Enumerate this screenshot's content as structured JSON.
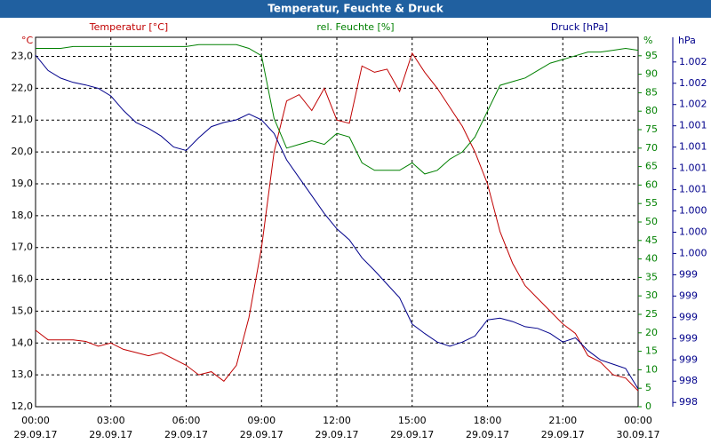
{
  "chart_data": {
    "type": "line",
    "title": "Temperatur, Feuchte & Druck",
    "x": [
      0,
      0.5,
      1,
      1.5,
      2,
      2.5,
      3,
      3.5,
      4,
      4.5,
      5,
      5.5,
      6,
      6.5,
      7,
      7.5,
      8,
      8.5,
      9,
      9.5,
      10,
      10.5,
      11,
      11.5,
      12,
      12.5,
      13,
      13.5,
      14,
      14.5,
      15,
      15.5,
      16,
      16.5,
      17,
      17.5,
      18,
      18.5,
      19,
      19.5,
      20,
      20.5,
      21,
      21.5,
      22,
      22.5,
      23,
      23.5,
      24
    ],
    "xlim": [
      0,
      24
    ],
    "xticks": [
      {
        "value": 0,
        "label": "00:00"
      },
      {
        "value": 3,
        "label": "03:00"
      },
      {
        "value": 6,
        "label": "06:00"
      },
      {
        "value": 9,
        "label": "09:00"
      },
      {
        "value": 12,
        "label": "12:00"
      },
      {
        "value": 15,
        "label": "15:00"
      },
      {
        "value": 18,
        "label": "18:00"
      },
      {
        "value": 21,
        "label": "21:00"
      },
      {
        "value": 24,
        "label": "00:00"
      }
    ],
    "xtick_dates": [
      "29.09.17",
      "29.09.17",
      "29.09.17",
      "29.09.17",
      "29.09.17",
      "29.09.17",
      "29.09.17",
      "29.09.17",
      "30.09.17"
    ],
    "ylabel": "°C",
    "ylim": [
      12,
      23.6
    ],
    "yticks": [
      {
        "value": 12,
        "label": "12,0"
      },
      {
        "value": 13,
        "label": "13,0"
      },
      {
        "value": 14,
        "label": "14,0"
      },
      {
        "value": 15,
        "label": "15,0"
      },
      {
        "value": 16,
        "label": "16,0"
      },
      {
        "value": 17,
        "label": "17,0"
      },
      {
        "value": 18,
        "label": "18,0"
      },
      {
        "value": 19,
        "label": "19,0"
      },
      {
        "value": 20,
        "label": "20,0"
      },
      {
        "value": 21,
        "label": "21,0"
      },
      {
        "value": 22,
        "label": "22,0"
      },
      {
        "value": 23,
        "label": "23,0"
      }
    ],
    "y2label": "%",
    "y2lim": [
      0,
      100
    ],
    "y2ticks": [
      0,
      5,
      10,
      15,
      20,
      25,
      30,
      35,
      40,
      45,
      50,
      55,
      60,
      65,
      70,
      75,
      80,
      85,
      90,
      95
    ],
    "y3label": "hPa",
    "y3lim": [
      997.95,
      1002.29
    ],
    "y3ticks": [
      {
        "value": 998.0,
        "label": "998"
      },
      {
        "value": 998.25,
        "label": "998"
      },
      {
        "value": 998.5,
        "label": "999"
      },
      {
        "value": 998.75,
        "label": "999"
      },
      {
        "value": 999.0,
        "label": "999"
      },
      {
        "value": 999.25,
        "label": "999"
      },
      {
        "value": 999.5,
        "label": "999"
      },
      {
        "value": 999.75,
        "label": "1.000"
      },
      {
        "value": 1000.0,
        "label": "1.000"
      },
      {
        "value": 1000.25,
        "label": "1.000"
      },
      {
        "value": 1000.5,
        "label": "1.001"
      },
      {
        "value": 1000.75,
        "label": "1.001"
      },
      {
        "value": 1001.0,
        "label": "1.001"
      },
      {
        "value": 1001.25,
        "label": "1.001"
      },
      {
        "value": 1001.5,
        "label": "1.002"
      },
      {
        "value": 1001.75,
        "label": "1.002"
      },
      {
        "value": 1002.0,
        "label": "1.002"
      }
    ],
    "grid": true,
    "series": [
      {
        "name": "Temperatur [°C]",
        "color": "#c00000",
        "axis": "y",
        "values": [
          14.4,
          14.1,
          14.1,
          14.1,
          14.05,
          13.9,
          14.0,
          13.8,
          13.7,
          13.6,
          13.7,
          13.5,
          13.3,
          13.0,
          13.1,
          12.8,
          13.3,
          14.8,
          17.0,
          20.0,
          21.6,
          21.8,
          21.3,
          22.0,
          21.0,
          20.9,
          22.7,
          22.5,
          22.6,
          21.9,
          23.1,
          22.5,
          22.0,
          21.4,
          20.8,
          20.0,
          19.0,
          17.5,
          16.5,
          15.8,
          15.4,
          15.0,
          14.6,
          14.3,
          13.6,
          13.4,
          13.0,
          12.9,
          12.5
        ]
      },
      {
        "name": "rel. Feuchte [%]",
        "color": "#008000",
        "axis": "y2",
        "values": [
          97,
          97,
          97,
          97.5,
          97.5,
          97.5,
          97.5,
          97.5,
          97.5,
          97.5,
          97.5,
          97.5,
          97.5,
          98,
          98,
          98,
          98,
          97,
          95,
          78,
          70,
          71,
          72,
          71,
          74,
          73,
          66,
          64,
          64,
          64,
          66,
          63,
          64,
          67,
          69,
          73,
          80,
          87,
          88,
          89,
          91,
          93,
          94,
          95,
          96,
          96,
          96.5,
          97,
          96.5
        ]
      },
      {
        "name": "Druck [hPa]",
        "color": "#00008b",
        "axis": "y3",
        "values": [
          1002.08,
          1001.9,
          1001.81,
          1001.76,
          1001.73,
          1001.69,
          1001.6,
          1001.43,
          1001.29,
          1001.22,
          1001.13,
          1001.0,
          1000.96,
          1001.11,
          1001.24,
          1001.29,
          1001.32,
          1001.39,
          1001.32,
          1001.16,
          1000.85,
          1000.64,
          1000.43,
          1000.22,
          1000.04,
          999.91,
          999.7,
          999.55,
          999.39,
          999.23,
          998.92,
          998.81,
          998.71,
          998.66,
          998.71,
          998.78,
          998.97,
          998.99,
          998.95,
          998.89,
          998.87,
          998.81,
          998.71,
          998.76,
          998.61,
          998.5,
          998.45,
          998.4,
          998.16
        ]
      }
    ]
  }
}
